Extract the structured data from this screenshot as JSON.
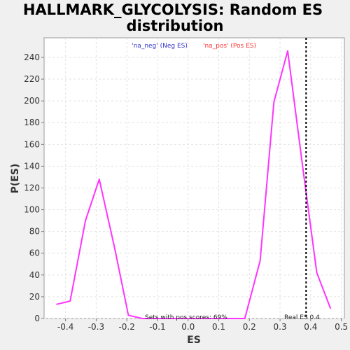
{
  "chart_data": {
    "type": "line",
    "title_line1": "HALLMARK_GLYCOLYSIS: Random ES",
    "title_line2": "distribution",
    "xlabel": "ES",
    "ylabel": "P(ES)",
    "xlim": [
      -0.47,
      0.51
    ],
    "ylim": [
      0,
      258
    ],
    "x_ticks": [
      -0.4,
      -0.3,
      -0.2,
      -0.1,
      0.0,
      0.1,
      0.2,
      0.3,
      0.4,
      0.5
    ],
    "x_tick_labels": [
      "-0.4",
      "-0.3",
      "-0.2",
      "-0.1",
      "0.0",
      "0.1",
      "0.2",
      "0.3",
      "0.4",
      "0.5"
    ],
    "y_ticks": [
      0,
      20,
      40,
      60,
      80,
      100,
      120,
      140,
      160,
      180,
      200,
      220,
      240
    ],
    "y_tick_labels": [
      "0",
      "20",
      "40",
      "60",
      "80",
      "100",
      "120",
      "140",
      "160",
      "180",
      "200",
      "220",
      "240"
    ],
    "grid": true,
    "legend": [
      {
        "label": "'na_neg' (Neg ES)",
        "color": "#3333cc"
      },
      {
        "label": "'na_pos' (Pos ES)",
        "color": "#ff3333"
      }
    ],
    "series": [
      {
        "color": "#ff33ff",
        "x": [
          -0.43,
          -0.385,
          -0.335,
          -0.29,
          -0.24,
          -0.195,
          -0.15,
          -0.1,
          -0.05,
          0.0,
          0.05,
          0.1,
          0.14,
          0.185,
          0.235,
          0.28,
          0.325,
          0.375,
          0.42,
          0.465
        ],
        "y": [
          13,
          16,
          90,
          128,
          65,
          3,
          0,
          0,
          0,
          0,
          0,
          0,
          0,
          0,
          53,
          199,
          246,
          137,
          42,
          9
        ]
      }
    ],
    "real_es": 0.385,
    "annotations": {
      "pos_scores": "Sets with pos scores: 69%",
      "real_es": "Real ES 0.4"
    }
  }
}
